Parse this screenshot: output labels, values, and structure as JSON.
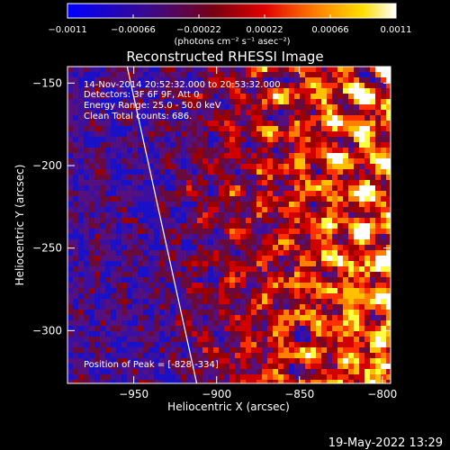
{
  "chart_data": {
    "type": "heatmap",
    "title": "Reconstructed RHESSI Image",
    "xlabel": "Heliocentric X (arcsec)",
    "ylabel": "Heliocentric Y (arcsec)",
    "xlim": [
      -990,
      -795
    ],
    "ylim": [
      -332,
      -140
    ],
    "x_ticks": [
      -950,
      -900,
      -850,
      -800
    ],
    "y_ticks": [
      -150,
      -200,
      -250,
      -300
    ],
    "x_tick_labels": [
      "−950",
      "−900",
      "−850",
      "−800"
    ],
    "y_tick_labels": [
      "−150",
      "−200",
      "−250",
      "−300"
    ],
    "colorbar": {
      "ticks": [
        -0.0011,
        -0.00066,
        -0.00022,
        0.00022,
        0.00066,
        0.0011
      ],
      "tick_labels": [
        "−0.0011",
        "−0.00066",
        "−0.00022",
        "0.00022",
        "0.00066",
        "0.0011"
      ],
      "units": "(photons cm⁻² s⁻¹ asec⁻²)",
      "range": [
        -0.0011,
        0.0011
      ],
      "colors": [
        "#0000ff",
        "#4b0082",
        "#8b0000",
        "#ff0000",
        "#ff8c00",
        "#ffff00",
        "#ffffff"
      ]
    },
    "annotations": [
      "14-Nov-2014 20:52:32.000 to 20:53:32.000",
      "Detectors: 3F 6F 9F, Att 0",
      "Energy Range: 25.0 - 50.0 keV",
      "Clean   Total counts: 686."
    ],
    "peak_label": "Position of Peak = [-828,-334]",
    "peak_position": [
      -828,
      -334
    ],
    "limb_line": [
      [
        -954,
        -140
      ],
      [
        -912,
        -332
      ]
    ],
    "grid": false
  },
  "footer": {
    "timestamp": "19-May-2022 13:29"
  }
}
